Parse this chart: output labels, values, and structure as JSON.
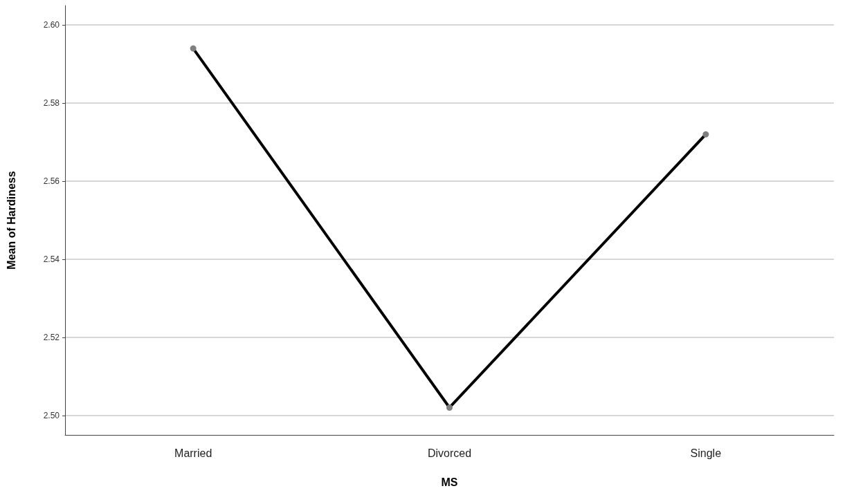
{
  "chart_data": {
    "type": "line",
    "xlabel": "MS",
    "ylabel": "Mean of Hardiness",
    "categories": [
      "Married",
      "Divorced",
      "Single"
    ],
    "series": [
      {
        "color": "#000000",
        "colors": [
          "#7f7f7f",
          "#7f7f7f",
          "#7f7f7f"
        ],
        "values": [
          2.594,
          2.502,
          2.572
        ]
      }
    ],
    "ylim": [
      2.495,
      2.605
    ],
    "yticks": [
      {
        "value": 2.5,
        "label": "2.50"
      },
      2.52,
      2.54,
      2.56,
      2.58,
      {
        "value": 2.6,
        "label": "2.60"
      }
    ],
    "grid": "y",
    "marker": "circle",
    "line_style": "solid"
  }
}
